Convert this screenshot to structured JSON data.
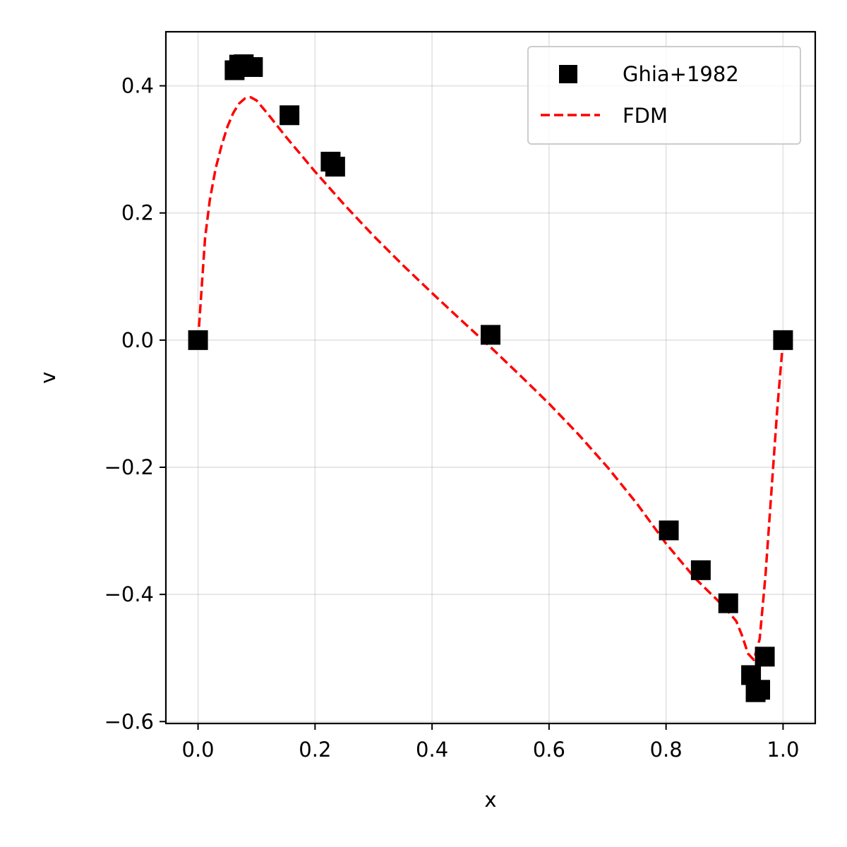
{
  "chart_data": {
    "type": "scatter",
    "xlabel": "x",
    "ylabel": "v",
    "xlim": [
      -0.055,
      1.055
    ],
    "ylim": [
      -0.603,
      0.485
    ],
    "xticks": [
      0.0,
      0.2,
      0.4,
      0.6,
      0.8,
      1.0
    ],
    "xtick_labels": [
      "0.0",
      "0.2",
      "0.4",
      "0.6",
      "0.8",
      "1.0"
    ],
    "yticks": [
      -0.6,
      -0.4,
      -0.2,
      0.0,
      0.2,
      0.4
    ],
    "ytick_labels": [
      "−0.6",
      "−0.4",
      "−0.2",
      "0.0",
      "0.2",
      "0.4"
    ],
    "grid": true,
    "legend_position": "top-right",
    "series": [
      {
        "name": "Ghia+1982",
        "kind": "scatter",
        "marker": "square",
        "color": "#000000",
        "points": [
          [
            0.0,
            0.0
          ],
          [
            0.0625,
            0.4245
          ],
          [
            0.0703,
            0.4333
          ],
          [
            0.0781,
            0.4339
          ],
          [
            0.0938,
            0.4295
          ],
          [
            0.1563,
            0.3537
          ],
          [
            0.2266,
            0.2807
          ],
          [
            0.2344,
            0.2728
          ],
          [
            0.5,
            0.0083
          ],
          [
            0.8047,
            -0.2993
          ],
          [
            0.8594,
            -0.3619
          ],
          [
            0.9063,
            -0.4139
          ],
          [
            0.9453,
            -0.5269
          ],
          [
            0.9531,
            -0.5538
          ],
          [
            0.9609,
            -0.55
          ],
          [
            0.9688,
            -0.4979
          ],
          [
            1.0,
            0.0
          ]
        ]
      },
      {
        "name": "FDM",
        "kind": "line",
        "style": "dashed",
        "color": "#ff0000",
        "points": [
          [
            0.0,
            0.0
          ],
          [
            0.006,
            0.08
          ],
          [
            0.012,
            0.16
          ],
          [
            0.02,
            0.22
          ],
          [
            0.03,
            0.27
          ],
          [
            0.04,
            0.305
          ],
          [
            0.05,
            0.335
          ],
          [
            0.06,
            0.357
          ],
          [
            0.07,
            0.372
          ],
          [
            0.08,
            0.38
          ],
          [
            0.09,
            0.382
          ],
          [
            0.1,
            0.377
          ],
          [
            0.12,
            0.355
          ],
          [
            0.15,
            0.32
          ],
          [
            0.2,
            0.265
          ],
          [
            0.25,
            0.213
          ],
          [
            0.3,
            0.164
          ],
          [
            0.35,
            0.118
          ],
          [
            0.4,
            0.074
          ],
          [
            0.45,
            0.031
          ],
          [
            0.5,
            -0.011
          ],
          [
            0.55,
            -0.055
          ],
          [
            0.6,
            -0.1
          ],
          [
            0.65,
            -0.148
          ],
          [
            0.7,
            -0.2
          ],
          [
            0.75,
            -0.257
          ],
          [
            0.8,
            -0.32
          ],
          [
            0.85,
            -0.375
          ],
          [
            0.9,
            -0.42
          ],
          [
            0.92,
            -0.442
          ],
          [
            0.93,
            -0.465
          ],
          [
            0.94,
            -0.493
          ],
          [
            0.95,
            -0.503
          ],
          [
            0.96,
            -0.47
          ],
          [
            0.97,
            -0.37
          ],
          [
            0.98,
            -0.24
          ],
          [
            0.99,
            -0.11
          ],
          [
            1.0,
            0.0
          ]
        ]
      }
    ]
  }
}
